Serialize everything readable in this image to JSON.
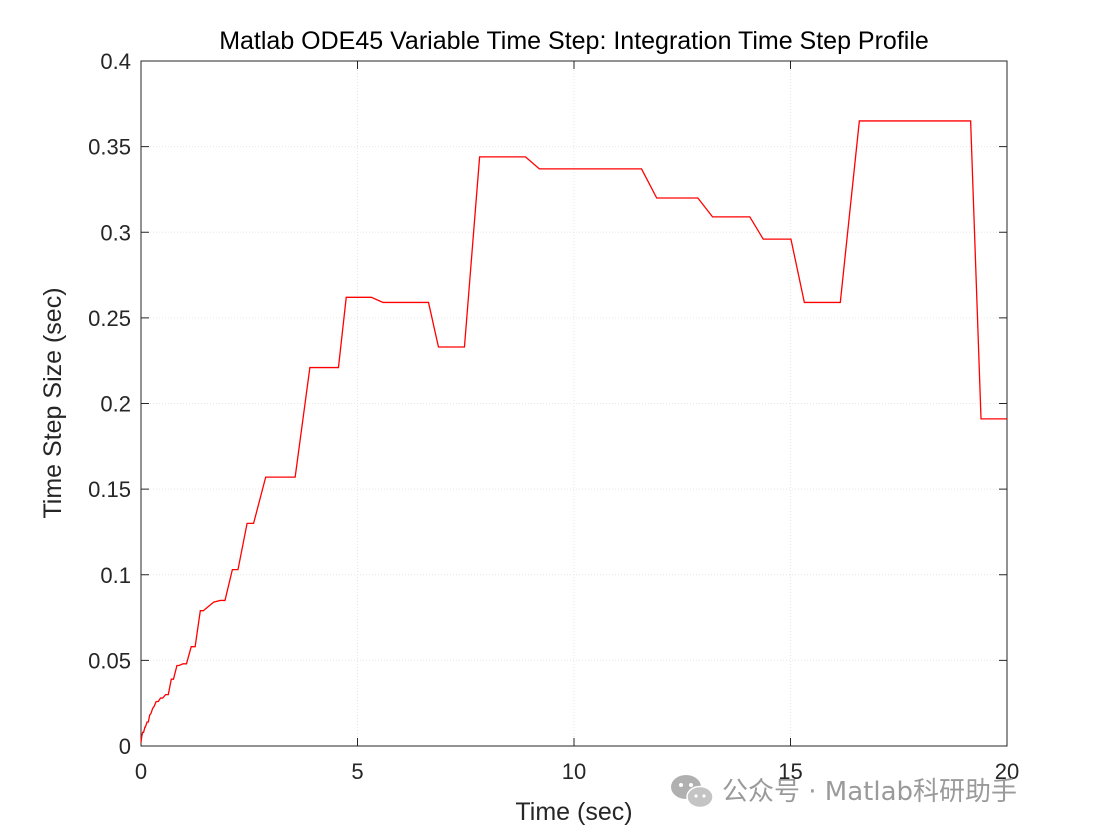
{
  "chart_data": {
    "type": "line",
    "title": "Matlab ODE45 Variable Time Step:  Integration Time Step Profile",
    "xlabel": "Time (sec)",
    "ylabel": "Time Step Size (sec)",
    "xlim": [
      0,
      20
    ],
    "ylim": [
      0,
      0.4
    ],
    "xticks": [
      0,
      5,
      10,
      15,
      20
    ],
    "xtick_labels": [
      "0",
      "5",
      "10",
      "15",
      "20"
    ],
    "yticks": [
      0,
      0.05,
      0.1,
      0.15,
      0.2,
      0.25,
      0.3,
      0.35,
      0.4
    ],
    "ytick_labels": [
      "0",
      "0.05",
      "0.1",
      "0.15",
      "0.2",
      "0.25",
      "0.3",
      "0.35",
      "0.4"
    ],
    "grid": true,
    "series": [
      {
        "color": "#ff0000",
        "x": [
          0.0,
          0.02,
          0.04,
          0.06,
          0.09,
          0.1,
          0.14,
          0.17,
          0.2,
          0.23,
          0.27,
          0.3,
          0.35,
          0.4,
          0.45,
          0.5,
          0.57,
          0.63,
          0.7,
          0.75,
          0.83,
          0.88,
          0.97,
          1.05,
          1.16,
          1.25,
          1.37,
          1.44,
          1.58,
          1.68,
          1.83,
          1.94,
          2.11,
          2.24,
          2.45,
          2.6,
          2.88,
          3.04,
          3.35,
          3.56,
          3.9,
          4.21,
          4.56,
          4.74,
          5.32,
          5.59,
          6.1,
          6.64,
          6.87,
          7.47,
          7.82,
          8.88,
          9.2,
          11.56,
          11.91,
          12.86,
          13.2,
          14.06,
          14.37,
          15.01,
          15.32,
          16.15,
          16.59,
          19.16,
          19.4,
          20.0
        ],
        "y": [
          0.002,
          0.006,
          0.008,
          0.008,
          0.011,
          0.011,
          0.014,
          0.014,
          0.018,
          0.019,
          0.022,
          0.023,
          0.026,
          0.026,
          0.028,
          0.028,
          0.03,
          0.03,
          0.039,
          0.039,
          0.047,
          0.047,
          0.048,
          0.048,
          0.058,
          0.058,
          0.079,
          0.079,
          0.082,
          0.084,
          0.085,
          0.085,
          0.103,
          0.103,
          0.13,
          0.13,
          0.157,
          0.157,
          0.157,
          0.157,
          0.221,
          0.221,
          0.221,
          0.262,
          0.262,
          0.259,
          0.259,
          0.259,
          0.233,
          0.233,
          0.344,
          0.344,
          0.337,
          0.337,
          0.32,
          0.32,
          0.309,
          0.309,
          0.296,
          0.296,
          0.259,
          0.259,
          0.365,
          0.365,
          0.191,
          0.191
        ]
      }
    ]
  },
  "watermark": {
    "text": "公众号 · Matlab科研助手",
    "icon": "wechat-icon"
  }
}
